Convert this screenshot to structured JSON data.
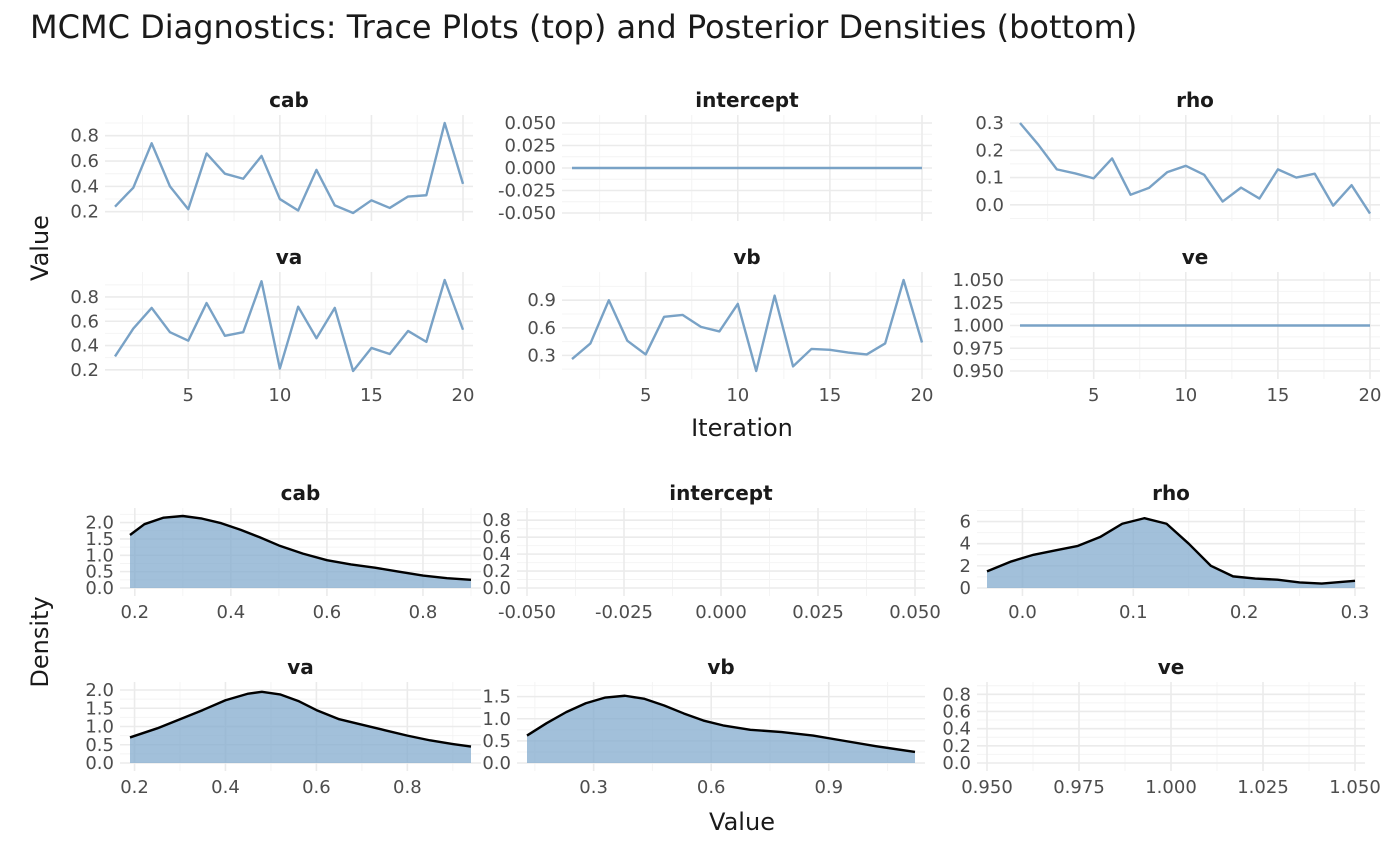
{
  "title": "MCMC Diagnostics: Trace Plots (top) and Posterior Densities (bottom)",
  "colors": {
    "trace_line": "#79a2c6",
    "density_fill": "#7ea7cc",
    "density_line": "#000000",
    "grid": "#ebebeb"
  },
  "chart_data": [
    {
      "type": "line",
      "name": "trace",
      "xlabel": "Iteration",
      "ylabel": "Value",
      "x_ticks": [
        5,
        10,
        15,
        20
      ],
      "xlim": [
        1,
        20
      ],
      "facets": [
        {
          "title": "cab",
          "ylim": [
            0.19,
            0.9
          ],
          "y_ticks": [
            0.2,
            0.4,
            0.6,
            0.8
          ],
          "y_tick_labels": [
            "0.2",
            "0.4",
            "0.6",
            "0.8"
          ],
          "x": [
            1,
            2,
            3,
            4,
            5,
            6,
            7,
            8,
            9,
            10,
            11,
            12,
            13,
            14,
            15,
            16,
            17,
            18,
            19,
            20
          ],
          "values": [
            0.24,
            0.39,
            0.74,
            0.4,
            0.22,
            0.66,
            0.5,
            0.46,
            0.64,
            0.3,
            0.21,
            0.53,
            0.25,
            0.19,
            0.29,
            0.23,
            0.32,
            0.33,
            0.9,
            0.42
          ]
        },
        {
          "title": "intercept",
          "ylim": [
            -0.05,
            0.05
          ],
          "y_ticks": [
            -0.05,
            -0.025,
            0,
            0.025,
            0.05
          ],
          "y_tick_labels": [
            "-0.050",
            "-0.025",
            "0.000",
            "0.025",
            "0.050"
          ],
          "x": [
            1,
            20
          ],
          "values": [
            0.0,
            0.0
          ]
        },
        {
          "title": "rho",
          "ylim": [
            -0.03,
            0.3
          ],
          "y_ticks": [
            0.0,
            0.1,
            0.2,
            0.3
          ],
          "y_tick_labels": [
            "0.0",
            "0.1",
            "0.2",
            "0.3"
          ],
          "x": [
            1,
            2,
            3,
            4,
            5,
            6,
            7,
            8,
            9,
            10,
            11,
            12,
            13,
            14,
            15,
            16,
            17,
            18,
            19,
            20
          ],
          "values": [
            0.3,
            0.22,
            0.13,
            0.115,
            0.097,
            0.17,
            0.037,
            0.062,
            0.12,
            0.143,
            0.11,
            0.012,
            0.063,
            0.023,
            0.13,
            0.1,
            0.114,
            -0.003,
            0.072,
            -0.032
          ]
        },
        {
          "title": "va",
          "ylim": [
            0.19,
            0.94
          ],
          "y_ticks": [
            0.2,
            0.4,
            0.6,
            0.8
          ],
          "y_tick_labels": [
            "0.2",
            "0.4",
            "0.6",
            "0.8"
          ],
          "x": [
            1,
            2,
            3,
            4,
            5,
            6,
            7,
            8,
            9,
            10,
            11,
            12,
            13,
            14,
            15,
            16,
            17,
            18,
            19,
            20
          ],
          "values": [
            0.31,
            0.54,
            0.71,
            0.51,
            0.44,
            0.75,
            0.48,
            0.51,
            0.93,
            0.21,
            0.72,
            0.46,
            0.71,
            0.19,
            0.38,
            0.33,
            0.52,
            0.43,
            0.94,
            0.53
          ]
        },
        {
          "title": "vb",
          "ylim": [
            0.13,
            1.12
          ],
          "y_ticks": [
            0.3,
            0.6,
            0.9
          ],
          "y_tick_labels": [
            "0.3",
            "0.6",
            "0.9"
          ],
          "x": [
            1,
            2,
            3,
            4,
            5,
            6,
            7,
            8,
            9,
            10,
            11,
            12,
            13,
            14,
            15,
            16,
            17,
            18,
            19,
            20
          ],
          "values": [
            0.26,
            0.43,
            0.9,
            0.46,
            0.31,
            0.72,
            0.74,
            0.61,
            0.56,
            0.86,
            0.13,
            0.95,
            0.18,
            0.37,
            0.36,
            0.33,
            0.31,
            0.43,
            1.12,
            0.44
          ]
        },
        {
          "title": "ve",
          "ylim": [
            0.95,
            1.05
          ],
          "y_ticks": [
            0.95,
            0.975,
            1.0,
            1.025,
            1.05
          ],
          "y_tick_labels": [
            "0.950",
            "0.975",
            "1.000",
            "1.025",
            "1.050"
          ],
          "x": [
            1,
            20
          ],
          "values": [
            1.0,
            1.0
          ]
        }
      ]
    },
    {
      "type": "area",
      "name": "density",
      "xlabel": "Value",
      "ylabel": "Density",
      "facets": [
        {
          "title": "cab",
          "xlim": [
            0.19,
            0.9
          ],
          "x_ticks": [
            0.2,
            0.4,
            0.6,
            0.8
          ],
          "x_tick_labels": [
            "0.2",
            "0.4",
            "0.6",
            "0.8"
          ],
          "ylim": [
            0,
            2.2
          ],
          "y_ticks": [
            0,
            0.5,
            1.0,
            1.5,
            2.0
          ],
          "y_tick_labels": [
            "0.0",
            "0.5",
            "1.0",
            "1.5",
            "2.0"
          ],
          "x": [
            0.19,
            0.22,
            0.26,
            0.3,
            0.34,
            0.38,
            0.42,
            0.46,
            0.5,
            0.55,
            0.6,
            0.65,
            0.7,
            0.75,
            0.8,
            0.85,
            0.9
          ],
          "values": [
            1.62,
            1.95,
            2.15,
            2.2,
            2.12,
            1.98,
            1.78,
            1.55,
            1.3,
            1.05,
            0.85,
            0.72,
            0.62,
            0.5,
            0.38,
            0.3,
            0.25
          ]
        },
        {
          "title": "intercept",
          "xlim": [
            -0.05,
            0.05
          ],
          "x_ticks": [
            -0.05,
            -0.025,
            0,
            0.025,
            0.05
          ],
          "x_tick_labels": [
            "-0.050",
            "-0.025",
            "0.000",
            "0.025",
            "0.050"
          ],
          "ylim": [
            0,
            0.85
          ],
          "y_ticks": [
            0,
            0.2,
            0.4,
            0.6,
            0.8
          ],
          "y_tick_labels": [
            "0.0",
            "0.2",
            "0.4",
            "0.6",
            "0.8"
          ],
          "x": [],
          "values": []
        },
        {
          "title": "rho",
          "xlim": [
            -0.032,
            0.3
          ],
          "x_ticks": [
            0.0,
            0.1,
            0.2,
            0.3
          ],
          "x_tick_labels": [
            "0.0",
            "0.1",
            "0.2",
            "0.3"
          ],
          "ylim": [
            0,
            6.5
          ],
          "y_ticks": [
            0,
            2,
            4,
            6
          ],
          "y_tick_labels": [
            "0",
            "2",
            "4",
            "6"
          ],
          "x": [
            -0.032,
            -0.01,
            0.01,
            0.03,
            0.05,
            0.07,
            0.09,
            0.11,
            0.13,
            0.15,
            0.17,
            0.19,
            0.21,
            0.23,
            0.25,
            0.27,
            0.3
          ],
          "values": [
            1.5,
            2.4,
            3.0,
            3.4,
            3.8,
            4.6,
            5.8,
            6.3,
            5.8,
            4.0,
            2.0,
            1.05,
            0.85,
            0.75,
            0.5,
            0.4,
            0.65
          ]
        },
        {
          "title": "va",
          "xlim": [
            0.19,
            0.94
          ],
          "x_ticks": [
            0.2,
            0.4,
            0.6,
            0.8
          ],
          "x_tick_labels": [
            "0.2",
            "0.4",
            "0.6",
            "0.8"
          ],
          "ylim": [
            0,
            2.0
          ],
          "y_ticks": [
            0,
            0.5,
            1.0,
            1.5,
            2.0
          ],
          "y_tick_labels": [
            "0.0",
            "0.5",
            "1.0",
            "1.5",
            "2.0"
          ],
          "x": [
            0.19,
            0.25,
            0.3,
            0.35,
            0.4,
            0.45,
            0.48,
            0.52,
            0.56,
            0.6,
            0.65,
            0.7,
            0.75,
            0.8,
            0.85,
            0.9,
            0.94
          ],
          "values": [
            0.7,
            0.95,
            1.2,
            1.45,
            1.72,
            1.9,
            1.95,
            1.88,
            1.7,
            1.45,
            1.2,
            1.05,
            0.9,
            0.75,
            0.62,
            0.52,
            0.45
          ]
        },
        {
          "title": "vb",
          "xlim": [
            0.13,
            1.12
          ],
          "x_ticks": [
            0.3,
            0.6,
            0.9
          ],
          "x_tick_labels": [
            "0.3",
            "0.6",
            "0.9"
          ],
          "ylim": [
            0,
            1.65
          ],
          "y_ticks": [
            0,
            0.5,
            1.0,
            1.5
          ],
          "y_tick_labels": [
            "0.0",
            "0.5",
            "1.0",
            "1.5"
          ],
          "x": [
            0.13,
            0.18,
            0.23,
            0.28,
            0.33,
            0.38,
            0.43,
            0.48,
            0.53,
            0.58,
            0.63,
            0.7,
            0.78,
            0.86,
            0.94,
            1.02,
            1.12
          ],
          "values": [
            0.62,
            0.9,
            1.15,
            1.35,
            1.48,
            1.52,
            1.45,
            1.3,
            1.12,
            0.96,
            0.85,
            0.75,
            0.7,
            0.62,
            0.5,
            0.38,
            0.25
          ]
        },
        {
          "title": "ve",
          "xlim": [
            0.95,
            1.05
          ],
          "x_ticks": [
            0.95,
            0.975,
            1.0,
            1.025,
            1.05
          ],
          "x_tick_labels": [
            "0.950",
            "0.975",
            "1.000",
            "1.025",
            "1.050"
          ],
          "ylim": [
            0,
            0.85
          ],
          "y_ticks": [
            0,
            0.2,
            0.4,
            0.6,
            0.8
          ],
          "y_tick_labels": [
            "0.0",
            "0.2",
            "0.4",
            "0.6",
            "0.8"
          ],
          "x": [],
          "values": []
        }
      ]
    }
  ]
}
